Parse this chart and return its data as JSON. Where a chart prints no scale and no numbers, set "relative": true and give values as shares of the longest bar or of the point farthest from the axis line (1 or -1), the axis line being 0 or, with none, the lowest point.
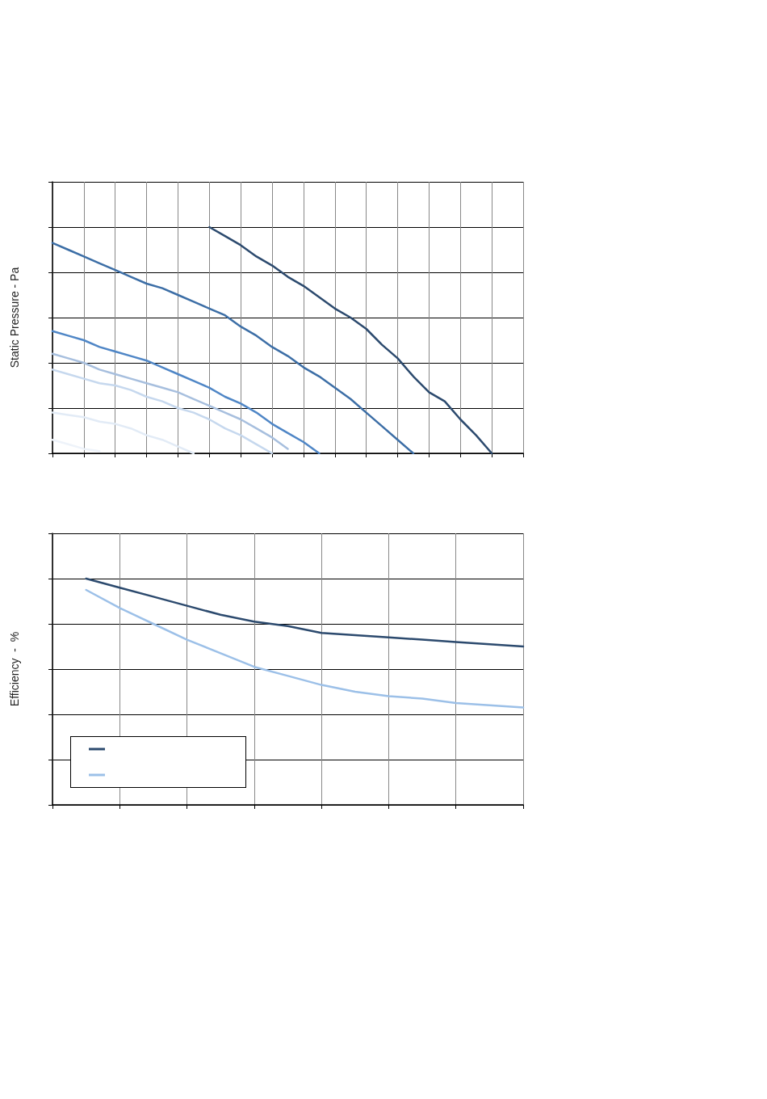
{
  "chart_data": [
    {
      "type": "line",
      "ylabel": "Static Pressure - Pa",
      "relative": true,
      "grid": true,
      "marker": "none",
      "categories": [
        null,
        null,
        null,
        null,
        null,
        null,
        null,
        null,
        null,
        null,
        null,
        null,
        null,
        null,
        null,
        null,
        null,
        null,
        null,
        null,
        null,
        null,
        null,
        null,
        null,
        null,
        null,
        null,
        null,
        null,
        null
      ],
      "series": [
        {
          "color": "#2c4a6e",
          "values": [
            null,
            null,
            null,
            null,
            null,
            null,
            null,
            null,
            null,
            null,
            1.0,
            0.96,
            0.92,
            0.87,
            0.83,
            0.78,
            0.74,
            0.69,
            0.64,
            0.6,
            0.55,
            0.48,
            0.42,
            0.34,
            0.27,
            0.23,
            0.15,
            0.08,
            0,
            null,
            null
          ]
        },
        {
          "color": "#3c6ea6",
          "values": [
            0.93,
            0.9,
            0.87,
            0.84,
            0.81,
            0.78,
            0.75,
            0.73,
            0.7,
            0.67,
            0.64,
            0.61,
            0.56,
            0.52,
            0.47,
            0.43,
            0.38,
            0.34,
            0.29,
            0.24,
            0.18,
            0.12,
            0.06,
            0,
            null,
            null,
            null,
            null,
            null,
            null,
            null
          ]
        },
        {
          "color": "#4f86c6",
          "values": [
            0.54,
            0.52,
            0.5,
            0.47,
            0.45,
            0.43,
            0.41,
            0.38,
            0.35,
            0.32,
            0.29,
            0.25,
            0.22,
            0.18,
            0.13,
            0.09,
            0.05,
            0,
            null,
            null,
            null,
            null,
            null,
            null,
            null,
            null,
            null,
            null,
            null,
            null,
            null
          ]
        },
        {
          "color": "#a7bfde",
          "values": [
            0.44,
            0.42,
            0.4,
            0.37,
            0.35,
            0.33,
            0.31,
            0.29,
            0.27,
            0.24,
            0.21,
            0.18,
            0.15,
            0.11,
            0.07,
            0.02,
            null,
            null,
            null,
            null,
            null,
            null,
            null,
            null,
            null,
            null,
            null,
            null,
            null,
            null,
            null
          ]
        },
        {
          "color": "#c6d8ee",
          "values": [
            0.37,
            0.35,
            0.33,
            0.31,
            0.3,
            0.28,
            0.25,
            0.23,
            0.2,
            0.18,
            0.15,
            0.11,
            0.08,
            0.04,
            0,
            null,
            null,
            null,
            null,
            null,
            null,
            null,
            null,
            null,
            null,
            null,
            null,
            null,
            null,
            null,
            null
          ]
        },
        {
          "color": "#e2ebf6",
          "values": [
            0.18,
            0.17,
            0.16,
            0.14,
            0.13,
            0.11,
            0.08,
            0.06,
            0.03,
            0,
            null,
            null,
            null,
            null,
            null,
            null,
            null,
            null,
            null,
            null,
            null,
            null,
            null,
            null,
            null,
            null,
            null,
            null,
            null,
            null,
            null
          ]
        },
        {
          "color": "#eef3fa",
          "values": [
            0.06,
            0.04,
            0.02,
            0.01,
            null,
            null,
            null,
            null,
            null,
            null,
            null,
            null,
            null,
            null,
            null,
            null,
            null,
            null,
            null,
            null,
            null,
            null,
            null,
            null,
            null,
            null,
            null,
            null,
            null,
            null,
            null
          ]
        }
      ]
    },
    {
      "type": "line",
      "ylabel": "Efficiency  -  %",
      "relative": true,
      "grid": true,
      "marker": "none",
      "categories": [
        null,
        null,
        null,
        null,
        null,
        null,
        null,
        null,
        null,
        null,
        null,
        null,
        null,
        null,
        null
      ],
      "series": [
        {
          "color": "#2c4a6e",
          "values": [
            null,
            1.0,
            0.96,
            0.92,
            0.88,
            0.84,
            0.81,
            0.79,
            0.76,
            0.75,
            0.74,
            0.73,
            0.72,
            0.71,
            0.7
          ]
        },
        {
          "color": "#9cc0e8",
          "values": [
            null,
            0.95,
            0.87,
            0.8,
            0.73,
            0.67,
            0.61,
            0.57,
            0.53,
            0.5,
            0.48,
            0.47,
            0.45,
            0.44,
            0.43
          ]
        }
      ]
    }
  ]
}
